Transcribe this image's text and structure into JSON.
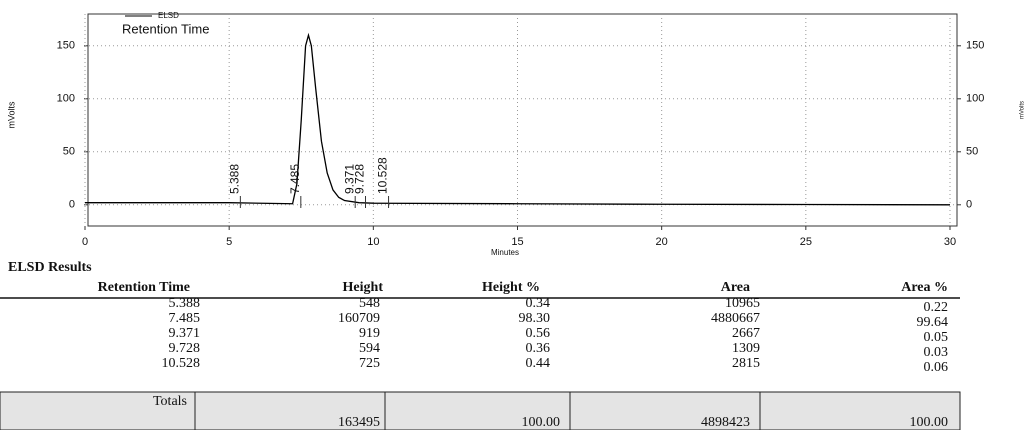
{
  "chart_data": {
    "type": "line",
    "legend_title": "Retention Time",
    "xlabel": "Minutes",
    "ylabel": "mVolts",
    "y2label": "mVolts",
    "xlim": [
      0,
      30
    ],
    "xticks": [
      0,
      5,
      10,
      15,
      20,
      25,
      30
    ],
    "ylim": [
      -20,
      180
    ],
    "yticks": [
      0,
      50,
      100,
      150
    ],
    "y2lim": [
      -20,
      180
    ],
    "y2ticks": [
      0,
      50,
      100,
      150
    ],
    "grid": true,
    "series": [
      {
        "name": "ELSD",
        "color": "#000000",
        "x": [
          0,
          5,
          7.2,
          7.35,
          7.5,
          7.65,
          7.75,
          7.85,
          8.0,
          8.2,
          8.4,
          8.6,
          8.8,
          9.0,
          9.5,
          10,
          15,
          20,
          25,
          30
        ],
        "values": [
          2,
          2,
          1,
          20,
          80,
          150,
          160,
          150,
          110,
          60,
          30,
          14,
          7,
          4,
          2,
          1.5,
          1,
          0.5,
          0.3,
          0
        ]
      }
    ],
    "peak_times": [
      5.388,
      7.485,
      9.371,
      9.728,
      10.528
    ]
  },
  "table": {
    "title": "ELSD Results",
    "columns": [
      "Retention Time",
      "Height",
      "Height %",
      "Area",
      "Area %"
    ],
    "rows": [
      [
        "5.388",
        "548",
        "0.34",
        "10965",
        "0.22"
      ],
      [
        "7.485",
        "160709",
        "98.30",
        "4880667",
        "99.64"
      ],
      [
        "9.371",
        "919",
        "0.56",
        "2667",
        "0.05"
      ],
      [
        "9.728",
        "594",
        "0.36",
        "1309",
        "0.03"
      ],
      [
        "10.528",
        "725",
        "0.44",
        "2815",
        "0.06"
      ]
    ],
    "totals_label": "Totals",
    "totals": [
      "163495",
      "100.00",
      "4898423",
      "100.00"
    ]
  }
}
